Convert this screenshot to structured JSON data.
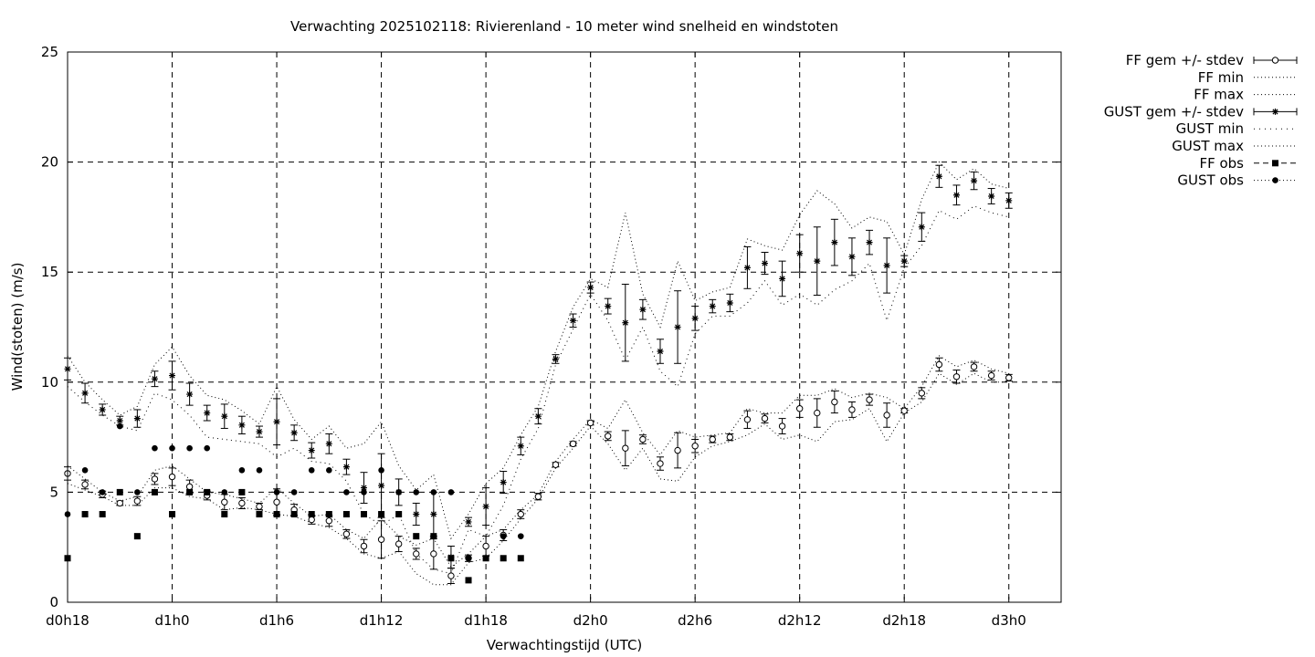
{
  "chart_data": {
    "type": "scatter",
    "title": "Verwachting 2025102118: Rivierenland - 10 meter wind snelheid en windstoten",
    "xlabel": "Verwachtingstijd (UTC)",
    "ylabel": "Wind(stoten) (m/s)",
    "xlim": [
      18,
      75
    ],
    "ylim": [
      0,
      25
    ],
    "x_ticks": [
      {
        "x": 18,
        "label": "d0h18"
      },
      {
        "x": 24,
        "label": "d1h0"
      },
      {
        "x": 30,
        "label": "d1h6"
      },
      {
        "x": 36,
        "label": "d1h12"
      },
      {
        "x": 42,
        "label": "d1h18"
      },
      {
        "x": 48,
        "label": "d2h0"
      },
      {
        "x": 54,
        "label": "d2h6"
      },
      {
        "x": 60,
        "label": "d2h12"
      },
      {
        "x": 66,
        "label": "d2h18"
      },
      {
        "x": 72,
        "label": "d3h0"
      }
    ],
    "y_ticks": [
      0,
      5,
      10,
      15,
      20,
      25
    ],
    "grid": true,
    "legend_position": "outside-top-right",
    "legend": [
      {
        "key": "ff_mean",
        "label": "FF gem +/- stdev"
      },
      {
        "key": "ff_min",
        "label": "FF min"
      },
      {
        "key": "ff_max",
        "label": "FF max"
      },
      {
        "key": "gust_mean",
        "label": "GUST gem +/- stdev"
      },
      {
        "key": "gust_min",
        "label": "GUST min"
      },
      {
        "key": "gust_max",
        "label": "GUST max"
      },
      {
        "key": "ff_obs",
        "label": "FF obs"
      },
      {
        "key": "gust_obs",
        "label": "GUST obs"
      }
    ],
    "ff_mean": {
      "x": [
        18,
        19,
        20,
        21,
        22,
        23,
        24,
        25,
        26,
        27,
        28,
        29,
        30,
        31,
        32,
        33,
        34,
        35,
        36,
        37,
        38,
        39,
        40,
        41,
        42,
        43,
        44,
        45,
        46,
        47,
        48,
        49,
        50,
        51,
        52,
        53,
        54,
        55,
        56,
        57,
        58,
        59,
        60,
        61,
        62,
        63,
        64,
        65,
        66,
        67,
        68,
        69,
        70,
        71,
        72
      ],
      "y": [
        5.85,
        5.35,
        4.9,
        4.5,
        4.6,
        5.6,
        5.7,
        5.25,
        4.85,
        4.55,
        4.5,
        4.35,
        4.55,
        4.2,
        3.75,
        3.7,
        3.1,
        2.55,
        2.85,
        2.65,
        2.2,
        2.2,
        1.2,
        2.0,
        2.55,
        3.05,
        4.0,
        4.8,
        6.25,
        7.2,
        8.15,
        7.55,
        7.0,
        7.4,
        6.3,
        6.9,
        7.1,
        7.4,
        7.5,
        8.3,
        8.35,
        8.0,
        8.8,
        8.6,
        9.1,
        8.75,
        9.2,
        8.5,
        8.7,
        9.5,
        10.8,
        10.25,
        10.7,
        10.3,
        10.2
      ],
      "err": [
        0.3,
        0.2,
        0.15,
        0.1,
        0.2,
        0.25,
        0.4,
        0.3,
        0.2,
        0.35,
        0.25,
        0.15,
        0.6,
        0.25,
        0.2,
        0.25,
        0.2,
        0.3,
        0.85,
        0.35,
        0.25,
        0.7,
        0.35,
        0.15,
        0.45,
        0.25,
        0.2,
        0.15,
        0.1,
        0.1,
        0.1,
        0.2,
        0.8,
        0.2,
        0.3,
        0.8,
        0.3,
        0.15,
        0.15,
        0.4,
        0.2,
        0.35,
        0.4,
        0.65,
        0.5,
        0.35,
        0.25,
        0.55,
        0.1,
        0.25,
        0.3,
        0.3,
        0.2,
        0.2,
        0.15
      ]
    },
    "ff_min": {
      "x": [
        18,
        19,
        20,
        21,
        22,
        23,
        24,
        25,
        26,
        27,
        28,
        29,
        30,
        31,
        32,
        33,
        34,
        35,
        36,
        37,
        38,
        39,
        40,
        41,
        42,
        43,
        44,
        45,
        46,
        47,
        48,
        49,
        50,
        51,
        52,
        53,
        54,
        55,
        56,
        57,
        58,
        59,
        60,
        61,
        62,
        63,
        64,
        65,
        66,
        67,
        68,
        69,
        70,
        71,
        72
      ],
      "y": [
        5.4,
        5.1,
        4.8,
        4.4,
        4.4,
        5.2,
        5.2,
        4.8,
        4.7,
        4.2,
        4.3,
        4.2,
        4.0,
        3.9,
        3.6,
        3.4,
        2.9,
        2.2,
        2.0,
        2.3,
        1.3,
        0.8,
        0.8,
        1.8,
        2.0,
        2.8,
        3.8,
        4.7,
        6.1,
        7.0,
        8.0,
        7.2,
        6.0,
        7.0,
        5.6,
        5.5,
        6.6,
        7.1,
        7.3,
        7.6,
        8.1,
        7.4,
        7.6,
        7.3,
        8.2,
        8.3,
        8.8,
        7.3,
        8.6,
        9.1,
        10.4,
        9.9,
        10.4,
        10.0,
        10.0
      ]
    },
    "ff_max": {
      "x": [
        18,
        19,
        20,
        21,
        22,
        23,
        24,
        25,
        26,
        27,
        28,
        29,
        30,
        31,
        32,
        33,
        34,
        35,
        36,
        37,
        38,
        39,
        40,
        41,
        42,
        43,
        44,
        45,
        46,
        47,
        48,
        49,
        50,
        51,
        52,
        53,
        54,
        55,
        56,
        57,
        58,
        59,
        60,
        61,
        62,
        63,
        64,
        65,
        66,
        67,
        68,
        69,
        70,
        71,
        72
      ],
      "y": [
        6.2,
        5.6,
        5.0,
        4.6,
        4.8,
        6.0,
        6.2,
        5.6,
        5.0,
        4.9,
        4.7,
        4.5,
        5.2,
        4.5,
        3.9,
        4.0,
        3.3,
        2.9,
        3.8,
        3.0,
        2.6,
        2.9,
        1.6,
        2.2,
        3.0,
        3.3,
        4.2,
        4.9,
        6.4,
        7.4,
        8.3,
        7.9,
        9.2,
        7.7,
        6.7,
        7.8,
        7.5,
        7.6,
        7.7,
        8.8,
        8.6,
        8.6,
        9.4,
        9.4,
        9.7,
        9.3,
        9.5,
        9.3,
        8.8,
        9.8,
        11.2,
        10.7,
        11.0,
        10.6,
        10.4
      ]
    },
    "gust_mean": {
      "x": [
        18,
        19,
        20,
        21,
        22,
        23,
        24,
        25,
        26,
        27,
        28,
        29,
        30,
        31,
        32,
        33,
        34,
        35,
        36,
        37,
        38,
        39,
        40,
        41,
        42,
        43,
        44,
        45,
        46,
        47,
        48,
        49,
        50,
        51,
        52,
        53,
        54,
        55,
        56,
        57,
        58,
        59,
        60,
        61,
        62,
        63,
        64,
        65,
        66,
        67,
        68,
        69,
        70,
        71,
        72
      ],
      "y": [
        10.6,
        9.5,
        8.75,
        8.25,
        8.35,
        10.15,
        10.3,
        9.45,
        8.6,
        8.45,
        8.05,
        7.75,
        8.2,
        7.7,
        6.9,
        7.2,
        6.15,
        5.2,
        5.3,
        5.0,
        4.0,
        4.0,
        2.05,
        3.65,
        4.35,
        5.45,
        7.1,
        8.45,
        11.05,
        12.8,
        14.3,
        13.45,
        12.7,
        13.3,
        11.4,
        12.5,
        12.9,
        13.45,
        13.6,
        15.2,
        15.4,
        14.7,
        15.85,
        15.5,
        16.35,
        15.7,
        16.35,
        15.3,
        15.5,
        17.05,
        19.35,
        18.5,
        19.15,
        18.45,
        18.25
      ],
      "err": [
        0.5,
        0.45,
        0.25,
        0.2,
        0.4,
        0.35,
        0.65,
        0.5,
        0.35,
        0.55,
        0.4,
        0.25,
        1.05,
        0.35,
        0.35,
        0.45,
        0.35,
        0.7,
        1.45,
        0.6,
        0.5,
        1.0,
        0.5,
        0.2,
        0.85,
        0.5,
        0.4,
        0.35,
        0.2,
        0.3,
        0.25,
        0.35,
        1.75,
        0.45,
        0.55,
        1.65,
        0.55,
        0.3,
        0.4,
        0.95,
        0.5,
        0.8,
        0.85,
        1.55,
        1.05,
        0.85,
        0.55,
        1.25,
        0.25,
        0.65,
        0.5,
        0.45,
        0.4,
        0.35,
        0.35
      ]
    },
    "gust_min": {
      "x": [
        18,
        19,
        20,
        21,
        22,
        23,
        24,
        25,
        26,
        27,
        28,
        29,
        30,
        31,
        32,
        33,
        34,
        35,
        36,
        37,
        38,
        39,
        40,
        41,
        42,
        43,
        44,
        45,
        46,
        47,
        48,
        49,
        50,
        51,
        52,
        53,
        54,
        55,
        56,
        57,
        58,
        59,
        60,
        61,
        62,
        63,
        64,
        65,
        66,
        67,
        68,
        69,
        70,
        71,
        72
      ],
      "y": [
        9.8,
        9.1,
        8.5,
        8.0,
        7.8,
        9.5,
        9.2,
        8.5,
        7.5,
        7.4,
        7.3,
        7.2,
        6.6,
        7.0,
        6.4,
        6.3,
        5.5,
        4.0,
        3.5,
        4.0,
        2.2,
        1.5,
        1.3,
        3.3,
        3.0,
        4.4,
        6.5,
        7.9,
        10.8,
        12.4,
        14.0,
        12.8,
        11.0,
        12.5,
        10.5,
        9.8,
        12.2,
        13.0,
        13.0,
        13.6,
        14.6,
        13.5,
        14.0,
        13.5,
        14.2,
        14.6,
        15.4,
        12.8,
        15.2,
        16.2,
        17.8,
        17.4,
        18.0,
        17.7,
        17.5
      ]
    },
    "gust_max": {
      "x": [
        18,
        19,
        20,
        21,
        22,
        23,
        24,
        25,
        26,
        27,
        28,
        29,
        30,
        31,
        32,
        33,
        34,
        35,
        36,
        37,
        38,
        39,
        40,
        41,
        42,
        43,
        44,
        45,
        46,
        47,
        48,
        49,
        50,
        51,
        52,
        53,
        54,
        55,
        56,
        57,
        58,
        59,
        60,
        61,
        62,
        63,
        64,
        65,
        66,
        67,
        68,
        69,
        70,
        71,
        72
      ],
      "y": [
        11.2,
        10.0,
        9.2,
        8.5,
        8.9,
        10.8,
        11.6,
        10.3,
        9.4,
        9.2,
        8.7,
        8.1,
        9.8,
        8.3,
        7.4,
        8.0,
        7.0,
        7.2,
        8.2,
        6.2,
        5.1,
        5.8,
        2.9,
        4.0,
        5.4,
        6.1,
        7.6,
        8.9,
        11.4,
        13.4,
        14.7,
        14.3,
        17.7,
        14.0,
        12.5,
        15.5,
        13.7,
        14.1,
        14.3,
        16.5,
        16.2,
        16.0,
        17.6,
        18.7,
        18.1,
        17.0,
        17.5,
        17.3,
        15.8,
        18.3,
        20.0,
        19.2,
        19.7,
        19.0,
        18.8
      ]
    },
    "ff_obs": {
      "x": [
        18,
        19,
        20,
        21,
        22,
        23,
        24,
        25,
        26,
        27,
        28,
        29,
        30,
        31,
        32,
        33,
        34,
        35,
        36,
        37,
        38,
        39,
        40,
        41,
        42,
        43,
        44
      ],
      "y": [
        2,
        4,
        4,
        5,
        3,
        5,
        4,
        5,
        5,
        4,
        5,
        4,
        4,
        4,
        4,
        4,
        4,
        4,
        4,
        4,
        3,
        3,
        2,
        1,
        2,
        2,
        2
      ]
    },
    "gust_obs": {
      "x": [
        18,
        19,
        20,
        21,
        22,
        23,
        24,
        25,
        26,
        27,
        28,
        29,
        30,
        31,
        32,
        33,
        34,
        35,
        36,
        37,
        38,
        39,
        40,
        41,
        42,
        43,
        44
      ],
      "y": [
        4,
        6,
        5,
        8,
        5,
        7,
        7,
        7,
        7,
        5,
        6,
        6,
        5,
        5,
        6,
        6,
        5,
        5,
        6,
        5,
        5,
        5,
        5,
        2,
        2,
        3,
        3
      ]
    }
  }
}
